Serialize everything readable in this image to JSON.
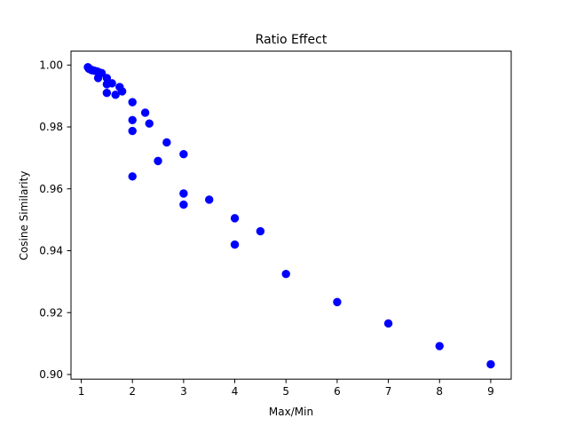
{
  "chart_data": {
    "type": "scatter",
    "title": "Ratio Effect",
    "xlabel": "Max/Min",
    "ylabel": "Cosine Similarity",
    "xlim": [
      0.8,
      9.4
    ],
    "ylim": [
      0.8985,
      1.0045
    ],
    "xticks": [
      1,
      2,
      3,
      4,
      5,
      6,
      7,
      8,
      9
    ],
    "yticks": [
      0.9,
      0.92,
      0.94,
      0.96,
      0.98,
      1.0
    ],
    "ytick_labels": [
      "0.90",
      "0.92",
      "0.94",
      "0.96",
      "0.98",
      "1.00"
    ],
    "grid": false,
    "series": [
      {
        "color": "#0000ff",
        "points": [
          [
            1.13,
            0.9993
          ],
          [
            1.15,
            0.9988
          ],
          [
            1.18,
            0.9986
          ],
          [
            1.2,
            0.9984
          ],
          [
            1.22,
            0.9983
          ],
          [
            1.25,
            0.9982
          ],
          [
            1.3,
            0.998
          ],
          [
            1.33,
            0.9978
          ],
          [
            1.36,
            0.9975
          ],
          [
            1.4,
            0.9974
          ],
          [
            1.33,
            0.9958
          ],
          [
            1.5,
            0.9958
          ],
          [
            1.5,
            0.9938
          ],
          [
            1.6,
            0.9941
          ],
          [
            1.75,
            0.9929
          ],
          [
            1.8,
            0.9915
          ],
          [
            1.5,
            0.991
          ],
          [
            1.67,
            0.9904
          ],
          [
            2.0,
            0.988
          ],
          [
            2.25,
            0.9846
          ],
          [
            2.0,
            0.9822
          ],
          [
            2.33,
            0.9811
          ],
          [
            2.0,
            0.9787
          ],
          [
            2.67,
            0.975
          ],
          [
            3.0,
            0.9712
          ],
          [
            2.5,
            0.969
          ],
          [
            2.0,
            0.964
          ],
          [
            3.0,
            0.9585
          ],
          [
            3.5,
            0.9565
          ],
          [
            3.0,
            0.9549
          ],
          [
            4.0,
            0.9505
          ],
          [
            4.5,
            0.9463
          ],
          [
            4.0,
            0.942
          ],
          [
            5.0,
            0.9325
          ],
          [
            6.0,
            0.9234
          ],
          [
            7.0,
            0.9165
          ],
          [
            8.0,
            0.9092
          ],
          [
            9.0,
            0.9033
          ]
        ]
      }
    ]
  }
}
